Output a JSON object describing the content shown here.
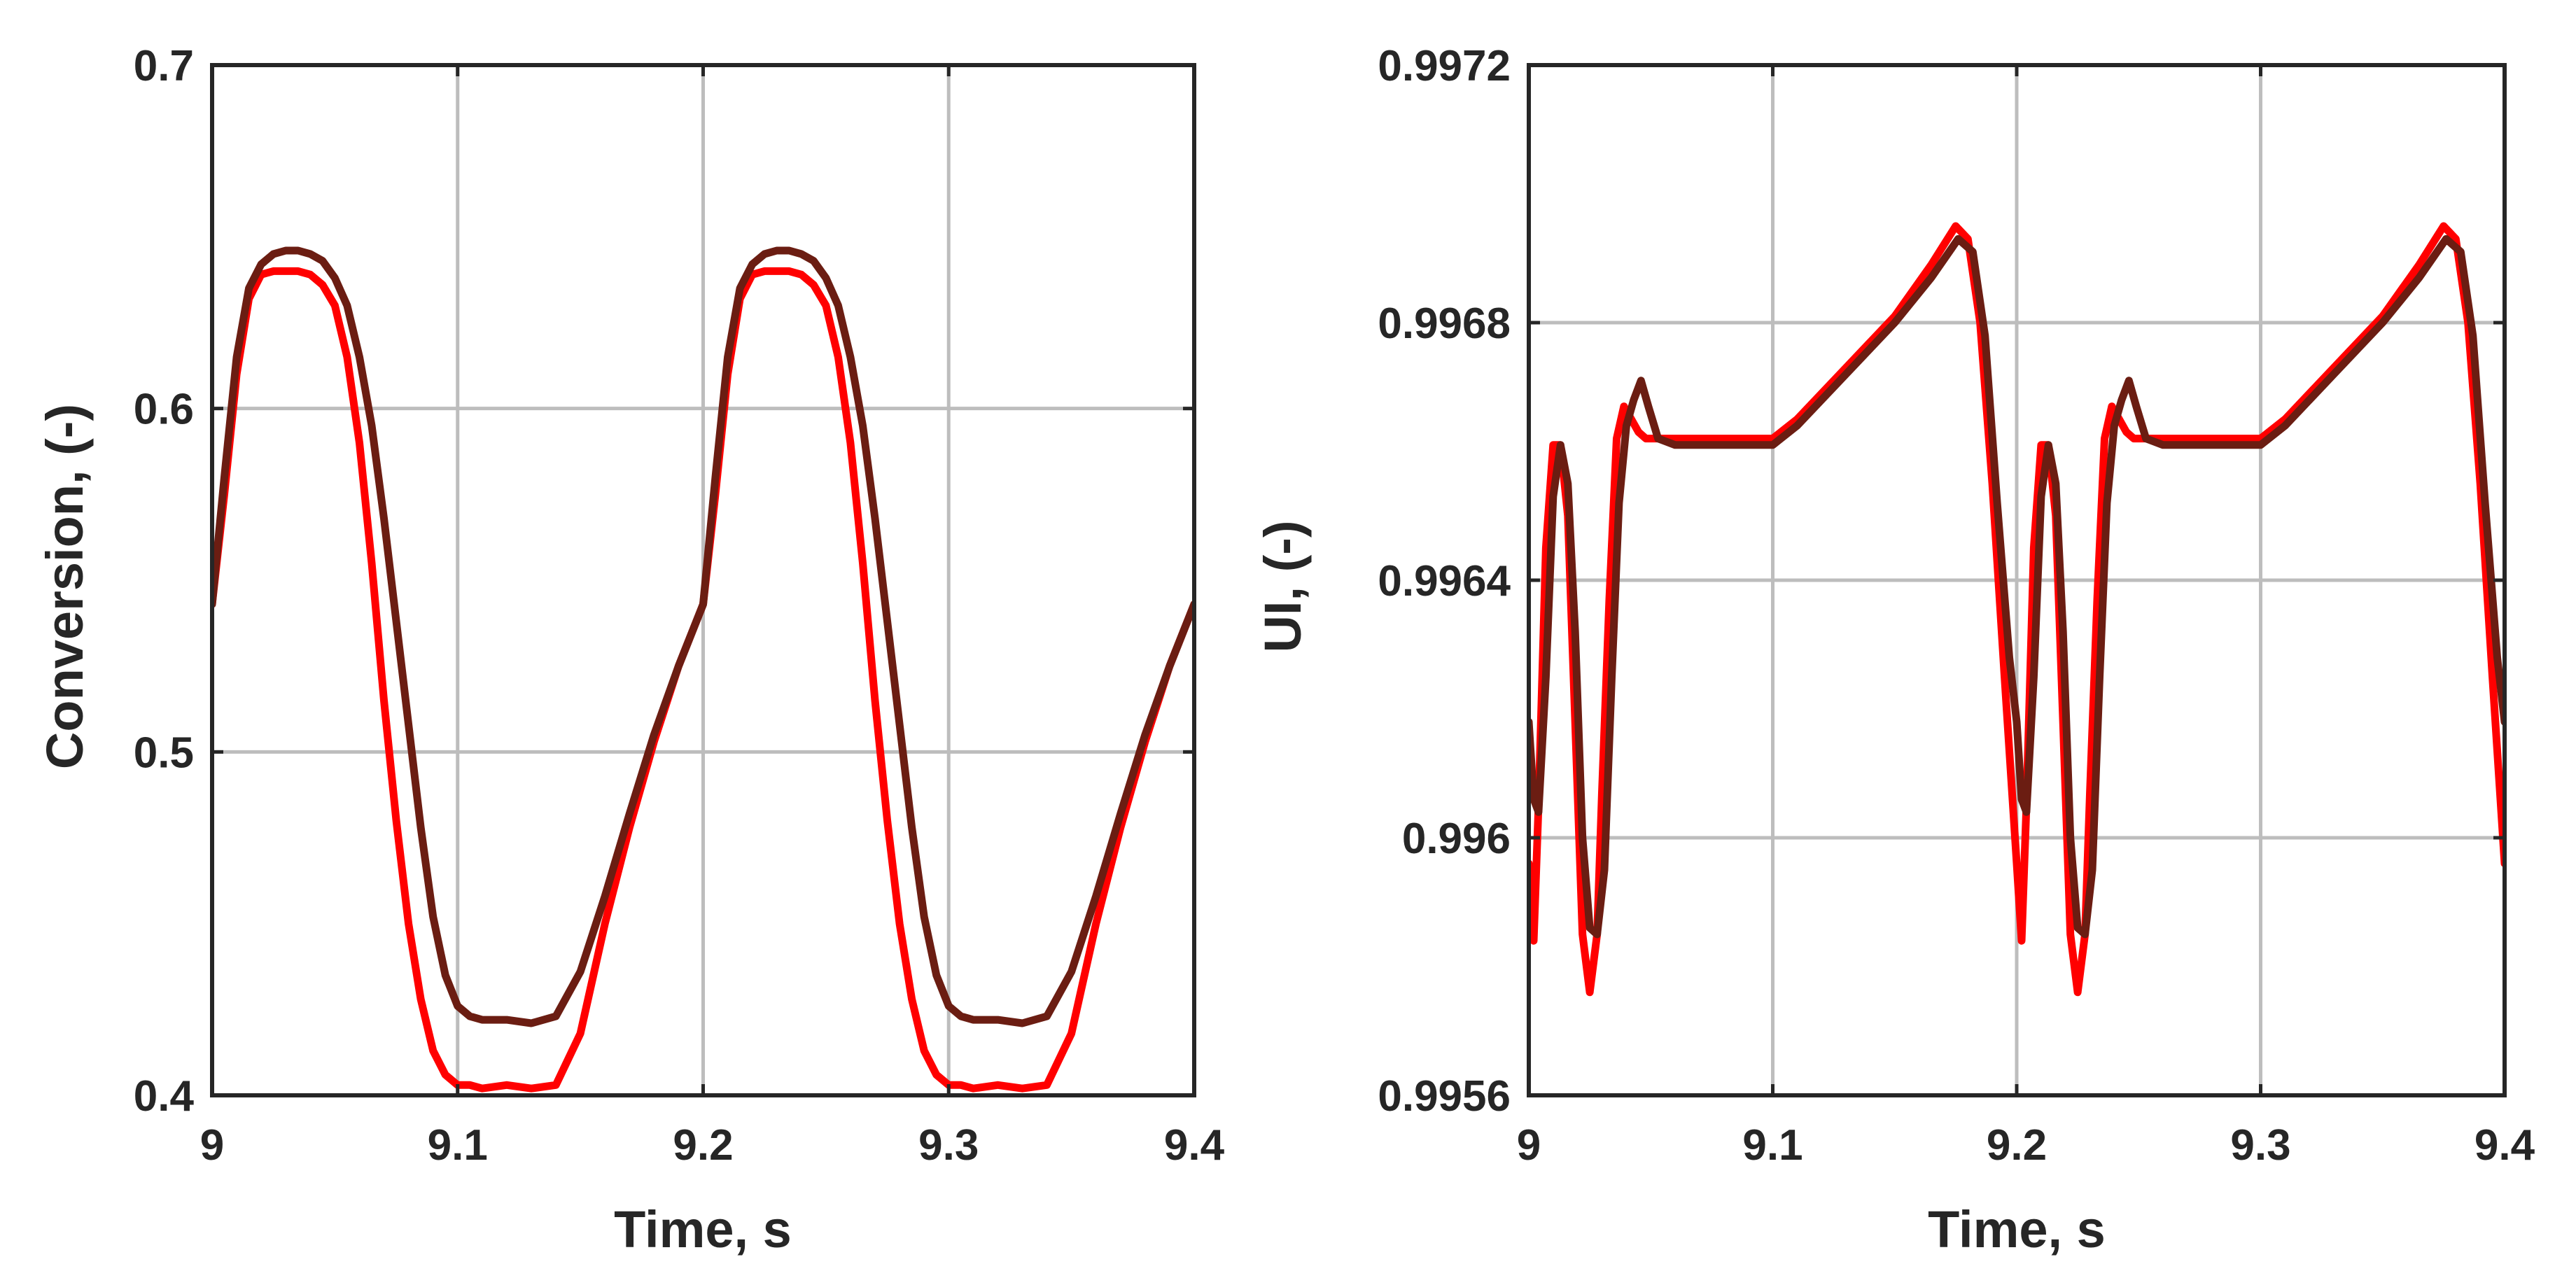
{
  "chart_data": [
    {
      "type": "line",
      "title": "",
      "xlabel": "Time, s",
      "ylabel": "Conversion, (-)",
      "xlim": [
        9,
        9.4
      ],
      "ylim": [
        0.4,
        0.7
      ],
      "xticks": [
        9,
        9.1,
        9.2,
        9.3,
        9.4
      ],
      "xtick_labels": [
        "9",
        "9.1",
        "9.2",
        "9.3",
        "9.4"
      ],
      "yticks": [
        0.4,
        0.5,
        0.6,
        0.7
      ],
      "ytick_labels": [
        "0.4",
        "0.5",
        "0.6",
        "0.7"
      ],
      "grid": true,
      "legend": "none",
      "series": [
        {
          "color": "#ff0000",
          "x": [
            9.0,
            9.005,
            9.01,
            9.015,
            9.02,
            9.025,
            9.03,
            9.035,
            9.04,
            9.045,
            9.05,
            9.055,
            9.06,
            9.065,
            9.07,
            9.075,
            9.08,
            9.085,
            9.09,
            9.095,
            9.1,
            9.105,
            9.11,
            9.12,
            9.13,
            9.14,
            9.15,
            9.16,
            9.17,
            9.18,
            9.19,
            9.2,
            9.205,
            9.21,
            9.215,
            9.22,
            9.225,
            9.23,
            9.235,
            9.24,
            9.245,
            9.25,
            9.255,
            9.26,
            9.265,
            9.27,
            9.275,
            9.28,
            9.285,
            9.29,
            9.295,
            9.3,
            9.305,
            9.31,
            9.32,
            9.33,
            9.34,
            9.35,
            9.36,
            9.37,
            9.38,
            9.39,
            9.4
          ],
          "y": [
            0.543,
            0.575,
            0.61,
            0.632,
            0.639,
            0.64,
            0.64,
            0.64,
            0.639,
            0.636,
            0.63,
            0.615,
            0.59,
            0.555,
            0.515,
            0.48,
            0.45,
            0.428,
            0.413,
            0.406,
            0.403,
            0.403,
            0.402,
            0.403,
            0.402,
            0.403,
            0.418,
            0.45,
            0.478,
            0.503,
            0.525,
            0.543,
            0.575,
            0.61,
            0.632,
            0.639,
            0.64,
            0.64,
            0.64,
            0.639,
            0.636,
            0.63,
            0.615,
            0.59,
            0.555,
            0.515,
            0.48,
            0.45,
            0.428,
            0.413,
            0.406,
            0.403,
            0.403,
            0.402,
            0.403,
            0.402,
            0.403,
            0.418,
            0.45,
            0.478,
            0.503,
            0.525,
            0.543
          ]
        },
        {
          "color": "#6b1d12",
          "x": [
            9.0,
            9.005,
            9.01,
            9.015,
            9.02,
            9.025,
            9.03,
            9.035,
            9.04,
            9.045,
            9.05,
            9.055,
            9.06,
            9.065,
            9.07,
            9.075,
            9.08,
            9.085,
            9.09,
            9.095,
            9.1,
            9.105,
            9.11,
            9.12,
            9.13,
            9.14,
            9.15,
            9.16,
            9.17,
            9.18,
            9.19,
            9.2,
            9.205,
            9.21,
            9.215,
            9.22,
            9.225,
            9.23,
            9.235,
            9.24,
            9.245,
            9.25,
            9.255,
            9.26,
            9.265,
            9.27,
            9.275,
            9.28,
            9.285,
            9.29,
            9.295,
            9.3,
            9.305,
            9.31,
            9.32,
            9.33,
            9.34,
            9.35,
            9.36,
            9.37,
            9.38,
            9.39,
            9.4
          ],
          "y": [
            0.543,
            0.58,
            0.615,
            0.635,
            0.642,
            0.645,
            0.646,
            0.646,
            0.645,
            0.643,
            0.638,
            0.63,
            0.615,
            0.595,
            0.568,
            0.538,
            0.508,
            0.478,
            0.452,
            0.435,
            0.426,
            0.423,
            0.422,
            0.422,
            0.421,
            0.423,
            0.436,
            0.458,
            0.482,
            0.505,
            0.525,
            0.543,
            0.58,
            0.615,
            0.635,
            0.642,
            0.645,
            0.646,
            0.646,
            0.645,
            0.643,
            0.638,
            0.63,
            0.615,
            0.595,
            0.568,
            0.538,
            0.508,
            0.478,
            0.452,
            0.435,
            0.426,
            0.423,
            0.422,
            0.422,
            0.421,
            0.423,
            0.436,
            0.458,
            0.482,
            0.505,
            0.525,
            0.543
          ]
        }
      ]
    },
    {
      "type": "line",
      "title": "",
      "xlabel": "Time, s",
      "ylabel": "UI, (-)",
      "xlim": [
        9,
        9.4
      ],
      "ylim": [
        0.9956,
        0.9972
      ],
      "xticks": [
        9,
        9.1,
        9.2,
        9.3,
        9.4
      ],
      "xtick_labels": [
        "9",
        "9.1",
        "9.2",
        "9.3",
        "9.4"
      ],
      "yticks": [
        0.9956,
        0.996,
        0.9964,
        0.9968,
        0.9972
      ],
      "ytick_labels": [
        "0.9956",
        "0.996",
        "0.9964",
        "0.9968",
        "0.9972"
      ],
      "grid": true,
      "legend": "none",
      "series": [
        {
          "color": "#ff0000",
          "x": [
            9.0,
            9.002,
            9.004,
            9.007,
            9.01,
            9.013,
            9.016,
            9.019,
            9.022,
            9.025,
            9.028,
            9.03,
            9.033,
            9.036,
            9.039,
            9.042,
            9.045,
            9.048,
            9.052,
            9.06,
            9.08,
            9.1,
            9.11,
            9.13,
            9.15,
            9.165,
            9.175,
            9.18,
            9.185,
            9.19,
            9.195,
            9.2,
            9.202,
            9.204,
            9.207,
            9.21,
            9.213,
            9.216,
            9.219,
            9.222,
            9.225,
            9.228,
            9.23,
            9.233,
            9.236,
            9.239,
            9.242,
            9.245,
            9.248,
            9.252,
            9.26,
            9.28,
            9.3,
            9.31,
            9.33,
            9.35,
            9.365,
            9.375,
            9.38,
            9.385,
            9.39,
            9.395,
            9.4
          ],
          "y": [
            0.99596,
            0.99584,
            0.99605,
            0.99645,
            0.99661,
            0.99661,
            0.9965,
            0.99618,
            0.99585,
            0.99576,
            0.99585,
            0.99607,
            0.99637,
            0.99662,
            0.99667,
            0.99665,
            0.99663,
            0.99662,
            0.99662,
            0.99662,
            0.99662,
            0.99662,
            0.99665,
            0.99673,
            0.99681,
            0.99689,
            0.99695,
            0.99693,
            0.9968,
            0.99655,
            0.99625,
            0.99596,
            0.99584,
            0.99605,
            0.99645,
            0.99661,
            0.99661,
            0.9965,
            0.99618,
            0.99585,
            0.99576,
            0.99585,
            0.99607,
            0.99637,
            0.99662,
            0.99667,
            0.99665,
            0.99663,
            0.99662,
            0.99662,
            0.99662,
            0.99662,
            0.99662,
            0.99665,
            0.99673,
            0.99681,
            0.99689,
            0.99695,
            0.99693,
            0.9968,
            0.99655,
            0.99625,
            0.99596
          ]
        },
        {
          "color": "#6b1d12",
          "x": [
            9.0,
            9.002,
            9.004,
            9.007,
            9.01,
            9.013,
            9.016,
            9.019,
            9.022,
            9.025,
            9.028,
            9.031,
            9.034,
            9.037,
            9.04,
            9.043,
            9.046,
            9.049,
            9.053,
            9.06,
            9.08,
            9.1,
            9.11,
            9.13,
            9.15,
            9.165,
            9.176,
            9.182,
            9.187,
            9.192,
            9.197,
            9.2,
            9.202,
            9.204,
            9.207,
            9.21,
            9.213,
            9.216,
            9.219,
            9.222,
            9.225,
            9.228,
            9.231,
            9.234,
            9.237,
            9.24,
            9.243,
            9.246,
            9.249,
            9.253,
            9.26,
            9.28,
            9.3,
            9.31,
            9.33,
            9.35,
            9.365,
            9.376,
            9.382,
            9.387,
            9.392,
            9.397,
            9.4
          ],
          "y": [
            0.99618,
            0.99606,
            0.99604,
            0.99625,
            0.99653,
            0.99661,
            0.99655,
            0.99632,
            0.996,
            0.99586,
            0.99585,
            0.99595,
            0.99625,
            0.99652,
            0.99664,
            0.99668,
            0.99671,
            0.99667,
            0.99662,
            0.99661,
            0.99661,
            0.99661,
            0.99664,
            0.99672,
            0.9968,
            0.99687,
            0.99693,
            0.99691,
            0.99678,
            0.99652,
            0.99628,
            0.99618,
            0.99606,
            0.99604,
            0.99625,
            0.99653,
            0.99661,
            0.99655,
            0.99632,
            0.996,
            0.99586,
            0.99585,
            0.99595,
            0.99625,
            0.99652,
            0.99664,
            0.99668,
            0.99671,
            0.99667,
            0.99662,
            0.99661,
            0.99661,
            0.99661,
            0.99664,
            0.99672,
            0.9968,
            0.99687,
            0.99693,
            0.99691,
            0.99678,
            0.99652,
            0.99628,
            0.99618
          ]
        }
      ]
    }
  ]
}
